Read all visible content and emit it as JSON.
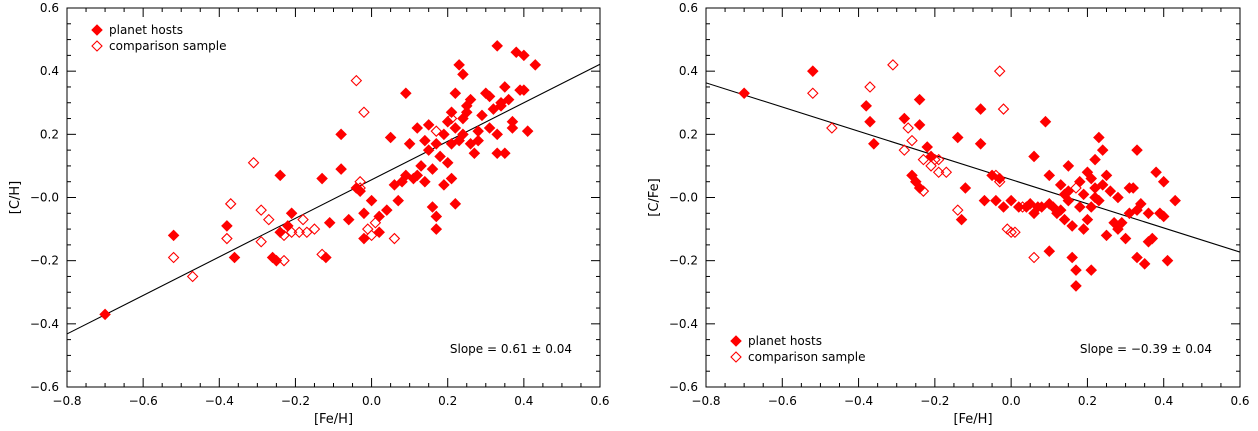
{
  "chart_data": [
    {
      "type": "scatter",
      "xlabel": "[Fe/H]",
      "ylabel": "[C/H]",
      "xlim": [
        -0.8,
        0.6
      ],
      "ylim": [
        -0.6,
        0.6
      ],
      "x_ticks": [
        "−0.8",
        "−0.6",
        "−0.4",
        "−0.2",
        "0.0",
        "0.2",
        "0.4",
        "0.6"
      ],
      "y_ticks": [
        "−0.6",
        "−0.4",
        "−0.2",
        "−0.0",
        "0.2",
        "0.4",
        "0.6"
      ],
      "legend_position": "top-left",
      "annotation": "Slope = 0.61 ± 0.04",
      "fit_line": {
        "slope": 0.61,
        "x": [
          -0.8,
          0.6
        ],
        "y": [
          -0.432,
          0.422
        ]
      },
      "series": [
        {
          "name": "planet hosts",
          "marker": "filled-diamond",
          "color": "#ff0000",
          "points": [
            [
              -0.7,
              -0.37
            ],
            [
              -0.52,
              -0.12
            ],
            [
              -0.38,
              -0.09
            ],
            [
              -0.36,
              -0.19
            ],
            [
              -0.26,
              -0.19
            ],
            [
              -0.25,
              -0.2
            ],
            [
              -0.24,
              0.07
            ],
            [
              -0.24,
              -0.11
            ],
            [
              -0.22,
              -0.09
            ],
            [
              -0.21,
              -0.05
            ],
            [
              -0.13,
              0.06
            ],
            [
              -0.12,
              -0.19
            ],
            [
              -0.11,
              -0.08
            ],
            [
              -0.08,
              0.2
            ],
            [
              -0.08,
              0.09
            ],
            [
              -0.06,
              -0.07
            ],
            [
              -0.04,
              0.03
            ],
            [
              -0.03,
              0.02
            ],
            [
              -0.02,
              -0.05
            ],
            [
              -0.02,
              -0.13
            ],
            [
              0.0,
              -0.01
            ],
            [
              0.02,
              -0.06
            ],
            [
              0.02,
              -0.11
            ],
            [
              0.04,
              -0.04
            ],
            [
              0.05,
              0.19
            ],
            [
              0.06,
              0.04
            ],
            [
              0.07,
              -0.01
            ],
            [
              0.08,
              0.05
            ],
            [
              0.09,
              0.33
            ],
            [
              0.09,
              0.07
            ],
            [
              0.1,
              0.17
            ],
            [
              0.11,
              0.06
            ],
            [
              0.12,
              0.07
            ],
            [
              0.12,
              0.22
            ],
            [
              0.13,
              0.1
            ],
            [
              0.14,
              0.18
            ],
            [
              0.14,
              0.05
            ],
            [
              0.15,
              0.15
            ],
            [
              0.15,
              0.23
            ],
            [
              0.16,
              -0.03
            ],
            [
              0.16,
              0.09
            ],
            [
              0.17,
              0.17
            ],
            [
              0.17,
              -0.06
            ],
            [
              0.17,
              -0.1
            ],
            [
              0.18,
              0.13
            ],
            [
              0.19,
              0.2
            ],
            [
              0.19,
              0.04
            ],
            [
              0.2,
              0.24
            ],
            [
              0.2,
              0.11
            ],
            [
              0.21,
              0.17
            ],
            [
              0.21,
              0.27
            ],
            [
              0.21,
              0.06
            ],
            [
              0.22,
              0.33
            ],
            [
              0.22,
              0.22
            ],
            [
              0.22,
              -0.02
            ],
            [
              0.23,
              0.42
            ],
            [
              0.23,
              0.18
            ],
            [
              0.24,
              0.39
            ],
            [
              0.24,
              0.25
            ],
            [
              0.24,
              0.2
            ],
            [
              0.25,
              0.29
            ],
            [
              0.25,
              0.27
            ],
            [
              0.26,
              0.31
            ],
            [
              0.26,
              0.17
            ],
            [
              0.27,
              0.14
            ],
            [
              0.28,
              0.18
            ],
            [
              0.28,
              0.21
            ],
            [
              0.29,
              0.26
            ],
            [
              0.3,
              0.33
            ],
            [
              0.31,
              0.32
            ],
            [
              0.31,
              0.22
            ],
            [
              0.32,
              0.28
            ],
            [
              0.33,
              0.48
            ],
            [
              0.33,
              0.14
            ],
            [
              0.33,
              0.2
            ],
            [
              0.34,
              0.29
            ],
            [
              0.34,
              0.3
            ],
            [
              0.35,
              0.35
            ],
            [
              0.35,
              0.14
            ],
            [
              0.36,
              0.31
            ],
            [
              0.37,
              0.22
            ],
            [
              0.37,
              0.24
            ],
            [
              0.38,
              0.46
            ],
            [
              0.39,
              0.34
            ],
            [
              0.4,
              0.45
            ],
            [
              0.4,
              0.34
            ],
            [
              0.41,
              0.21
            ],
            [
              0.43,
              0.42
            ]
          ]
        },
        {
          "name": "comparison sample",
          "marker": "open-diamond",
          "color": "#ff0000",
          "points": [
            [
              -0.52,
              -0.19
            ],
            [
              -0.47,
              -0.25
            ],
            [
              -0.38,
              -0.13
            ],
            [
              -0.37,
              -0.02
            ],
            [
              -0.31,
              0.11
            ],
            [
              -0.29,
              -0.04
            ],
            [
              -0.29,
              -0.14
            ],
            [
              -0.27,
              -0.07
            ],
            [
              -0.23,
              -0.2
            ],
            [
              -0.23,
              -0.12
            ],
            [
              -0.21,
              -0.11
            ],
            [
              -0.19,
              -0.11
            ],
            [
              -0.18,
              -0.07
            ],
            [
              -0.17,
              -0.11
            ],
            [
              -0.15,
              -0.1
            ],
            [
              -0.13,
              -0.18
            ],
            [
              -0.04,
              0.37
            ],
            [
              -0.03,
              0.05
            ],
            [
              -0.03,
              0.03
            ],
            [
              -0.02,
              0.27
            ],
            [
              -0.01,
              -0.1
            ],
            [
              0.0,
              -0.12
            ],
            [
              0.01,
              -0.08
            ],
            [
              0.06,
              -0.13
            ],
            [
              0.17,
              0.21
            ],
            [
              0.21,
              0.25
            ]
          ]
        }
      ]
    },
    {
      "type": "scatter",
      "xlabel": "[Fe/H]",
      "ylabel": "[C/Fe]",
      "xlim": [
        -0.8,
        0.6
      ],
      "ylim": [
        -0.6,
        0.6
      ],
      "x_ticks": [
        "−0.8",
        "−0.6",
        "−0.4",
        "−0.2",
        "0.0",
        "0.2",
        "0.4",
        "0.6"
      ],
      "y_ticks": [
        "−0.6",
        "−0.4",
        "−0.2",
        "−0.0",
        "0.2",
        "0.4",
        "0.6"
      ],
      "legend_position": "bottom-left",
      "annotation": "Slope = −0.39 ± 0.04",
      "fit_line": {
        "slope": -0.39,
        "x": [
          -0.8,
          0.6
        ],
        "y": [
          0.363,
          -0.173
        ]
      },
      "series": [
        {
          "name": "planet hosts",
          "marker": "filled-diamond",
          "color": "#ff0000",
          "points": [
            [
              -0.7,
              0.33
            ],
            [
              -0.52,
              0.4
            ],
            [
              -0.38,
              0.29
            ],
            [
              -0.37,
              0.24
            ],
            [
              -0.36,
              0.17
            ],
            [
              -0.28,
              0.25
            ],
            [
              -0.26,
              0.07
            ],
            [
              -0.25,
              0.05
            ],
            [
              -0.24,
              0.31
            ],
            [
              -0.24,
              0.23
            ],
            [
              -0.24,
              0.03
            ],
            [
              -0.22,
              0.16
            ],
            [
              -0.21,
              0.13
            ],
            [
              -0.14,
              0.19
            ],
            [
              -0.13,
              -0.07
            ],
            [
              -0.12,
              0.03
            ],
            [
              -0.08,
              0.17
            ],
            [
              -0.08,
              0.28
            ],
            [
              -0.07,
              -0.01
            ],
            [
              -0.05,
              0.07
            ],
            [
              -0.04,
              -0.01
            ],
            [
              -0.03,
              0.06
            ],
            [
              -0.02,
              -0.03
            ],
            [
              0.0,
              -0.01
            ],
            [
              0.02,
              -0.03
            ],
            [
              0.04,
              -0.03
            ],
            [
              0.05,
              -0.02
            ],
            [
              0.06,
              0.13
            ],
            [
              0.06,
              -0.05
            ],
            [
              0.07,
              -0.03
            ],
            [
              0.08,
              -0.03
            ],
            [
              0.09,
              0.24
            ],
            [
              0.1,
              -0.02
            ],
            [
              0.1,
              0.07
            ],
            [
              0.1,
              -0.17
            ],
            [
              0.11,
              -0.03
            ],
            [
              0.12,
              -0.05
            ],
            [
              0.13,
              -0.04
            ],
            [
              0.13,
              0.04
            ],
            [
              0.14,
              0.01
            ],
            [
              0.14,
              -0.07
            ],
            [
              0.15,
              0.1
            ],
            [
              0.15,
              0.02
            ],
            [
              0.15,
              -0.01
            ],
            [
              0.16,
              -0.19
            ],
            [
              0.16,
              -0.09
            ],
            [
              0.17,
              -0.23
            ],
            [
              0.17,
              -0.28
            ],
            [
              0.18,
              0.05
            ],
            [
              0.18,
              -0.03
            ],
            [
              0.19,
              -0.1
            ],
            [
              0.19,
              0.01
            ],
            [
              0.2,
              -0.07
            ],
            [
              0.2,
              0.08
            ],
            [
              0.21,
              -0.23
            ],
            [
              0.21,
              0.06
            ],
            [
              0.21,
              -0.03
            ],
            [
              0.22,
              0.03
            ],
            [
              0.22,
              0.12
            ],
            [
              0.22,
              0.0
            ],
            [
              0.23,
              0.19
            ],
            [
              0.23,
              -0.01
            ],
            [
              0.24,
              0.04
            ],
            [
              0.24,
              0.15
            ],
            [
              0.25,
              0.07
            ],
            [
              0.25,
              -0.12
            ],
            [
              0.26,
              0.02
            ],
            [
              0.27,
              -0.08
            ],
            [
              0.28,
              -0.1
            ],
            [
              0.28,
              0.0
            ],
            [
              0.29,
              -0.08
            ],
            [
              0.3,
              -0.13
            ],
            [
              0.31,
              -0.05
            ],
            [
              0.31,
              0.03
            ],
            [
              0.32,
              0.03
            ],
            [
              0.33,
              -0.04
            ],
            [
              0.33,
              0.15
            ],
            [
              0.33,
              -0.19
            ],
            [
              0.34,
              -0.02
            ],
            [
              0.35,
              -0.21
            ],
            [
              0.36,
              -0.14
            ],
            [
              0.36,
              -0.05
            ],
            [
              0.37,
              -0.13
            ],
            [
              0.38,
              0.08
            ],
            [
              0.39,
              -0.05
            ],
            [
              0.4,
              -0.06
            ],
            [
              0.4,
              0.05
            ],
            [
              0.41,
              -0.2
            ],
            [
              0.43,
              -0.01
            ]
          ]
        },
        {
          "name": "comparison sample",
          "marker": "open-diamond",
          "color": "#ff0000",
          "points": [
            [
              -0.52,
              0.33
            ],
            [
              -0.47,
              0.22
            ],
            [
              -0.37,
              0.35
            ],
            [
              -0.31,
              0.42
            ],
            [
              -0.28,
              0.15
            ],
            [
              -0.27,
              0.22
            ],
            [
              -0.26,
              0.18
            ],
            [
              -0.23,
              0.02
            ],
            [
              -0.23,
              0.12
            ],
            [
              -0.21,
              0.1
            ],
            [
              -0.2,
              0.12
            ],
            [
              -0.19,
              0.12
            ],
            [
              -0.19,
              0.08
            ],
            [
              -0.17,
              0.08
            ],
            [
              -0.14,
              -0.04
            ],
            [
              -0.04,
              0.07
            ],
            [
              -0.03,
              0.4
            ],
            [
              -0.03,
              0.05
            ],
            [
              -0.02,
              0.28
            ],
            [
              -0.01,
              -0.1
            ],
            [
              0.0,
              -0.11
            ],
            [
              0.01,
              -0.11
            ],
            [
              0.03,
              -0.03
            ],
            [
              0.06,
              -0.19
            ],
            [
              0.17,
              0.03
            ]
          ]
        }
      ]
    }
  ]
}
